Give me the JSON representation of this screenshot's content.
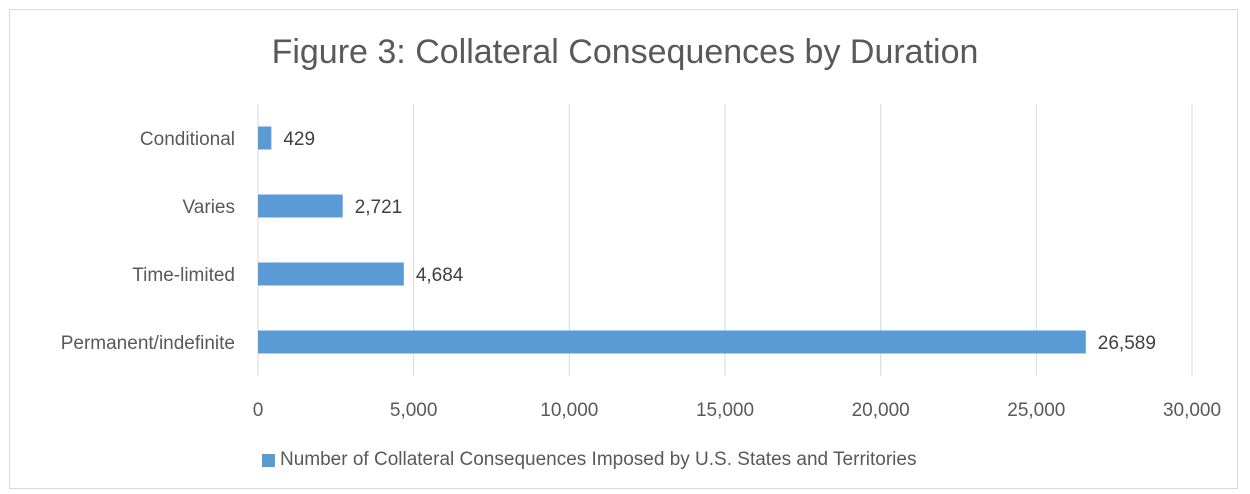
{
  "chart_data": {
    "type": "bar",
    "orientation": "horizontal",
    "title": "Figure 3: Collateral Consequences by Duration",
    "categories": [
      "Conditional",
      "Varies",
      "Time-limited",
      "Permanent/indefinite"
    ],
    "series": [
      {
        "name": "Number of Collateral Consequences Imposed by U.S. States and Territories",
        "values": [
          429,
          2721,
          4684,
          26589
        ],
        "labels": [
          "429",
          "2,721",
          "4,684",
          "26,589"
        ],
        "color": "#5b9bd5"
      }
    ],
    "xlim": [
      0,
      30000
    ],
    "xticks": [
      0,
      5000,
      10000,
      15000,
      20000,
      25000,
      30000
    ],
    "xtick_labels": [
      "0",
      "5,000",
      "10,000",
      "15,000",
      "20,000",
      "25,000",
      "30,000"
    ],
    "grid": true,
    "legend_position": "bottom"
  },
  "colors": {
    "bar": "#5b9bd5",
    "grid": "#d9d9d9",
    "text": "#595959"
  }
}
